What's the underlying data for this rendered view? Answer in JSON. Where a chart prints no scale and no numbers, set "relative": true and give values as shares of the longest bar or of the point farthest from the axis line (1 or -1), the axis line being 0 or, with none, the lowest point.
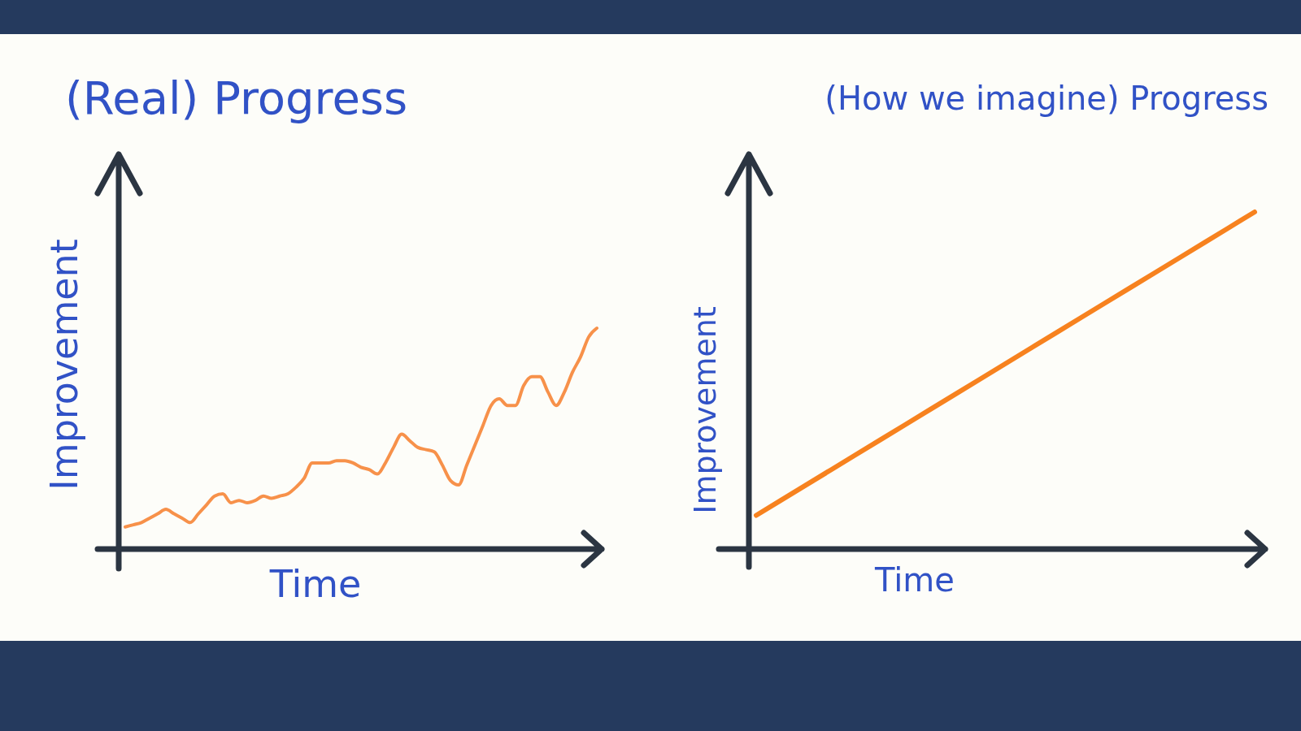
{
  "chart_data": [
    {
      "type": "line",
      "title": "(Real) Progress",
      "xlabel": "Time",
      "ylabel": "Improvement",
      "relative": true,
      "categories": [
        null,
        null,
        null,
        null,
        null,
        null,
        null,
        null,
        null,
        null,
        null,
        null,
        null,
        null,
        null,
        null,
        null,
        null,
        null,
        null,
        null,
        null,
        null,
        null,
        null,
        null,
        null,
        null,
        null,
        null,
        null,
        null,
        null,
        null,
        null,
        null,
        null,
        null,
        null,
        null,
        null,
        null,
        null,
        null,
        null,
        null,
        null,
        null,
        null,
        null,
        null,
        null,
        null,
        null,
        null,
        null,
        null,
        null,
        null
      ],
      "color": "#f7914a",
      "values": [
        0.1,
        0.11,
        0.12,
        0.14,
        0.16,
        0.18,
        0.16,
        0.14,
        0.12,
        0.16,
        0.2,
        0.24,
        0.25,
        0.21,
        0.22,
        0.21,
        0.22,
        0.24,
        0.23,
        0.24,
        0.25,
        0.28,
        0.32,
        0.39,
        0.39,
        0.39,
        0.4,
        0.4,
        0.39,
        0.37,
        0.36,
        0.34,
        0.39,
        0.46,
        0.52,
        0.49,
        0.46,
        0.45,
        0.44,
        0.38,
        0.31,
        0.29,
        0.38,
        0.47,
        0.56,
        0.65,
        0.68,
        0.65,
        0.65,
        0.74,
        0.78,
        0.78,
        0.71,
        0.65,
        0.71,
        0.8,
        0.87,
        0.96,
        1.0
      ]
    },
    {
      "type": "line",
      "title": "(How we imagine) Progress",
      "xlabel": "Time",
      "ylabel": "Improvement",
      "relative": true,
      "categories": [
        null,
        null,
        null,
        null,
        null,
        null,
        null,
        null,
        null,
        null,
        null
      ],
      "color": "#f7821f",
      "values": [
        0.1,
        0.19,
        0.28,
        0.37,
        0.46,
        0.55,
        0.64,
        0.73,
        0.82,
        0.91,
        1.0
      ]
    }
  ]
}
